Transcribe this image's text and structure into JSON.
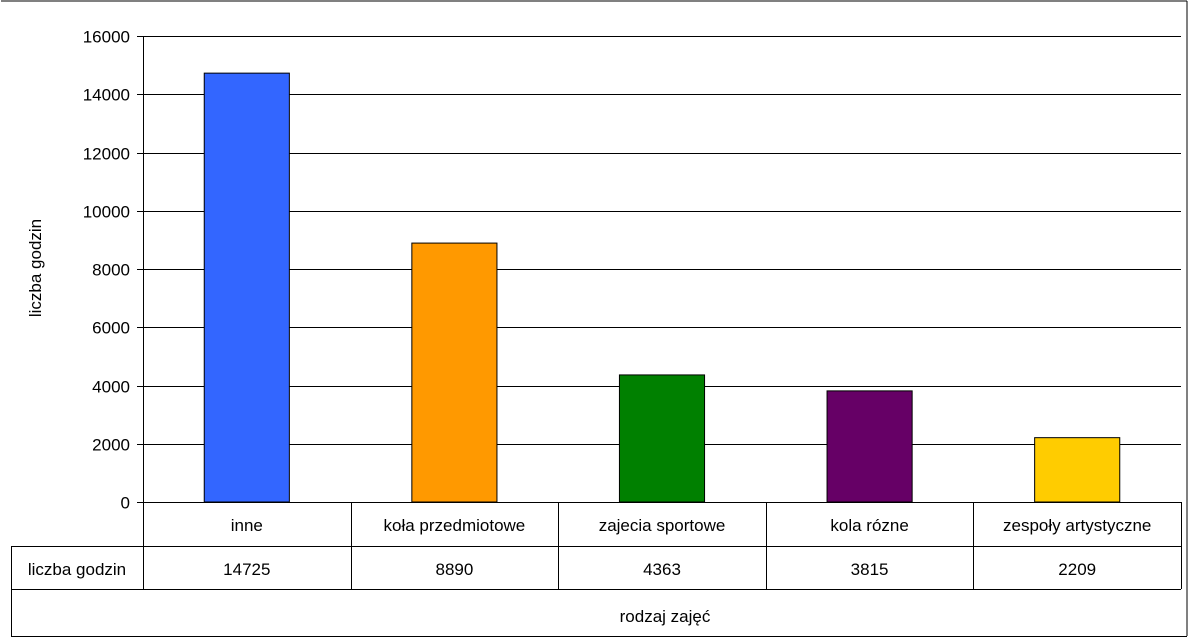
{
  "chart_data": {
    "type": "bar",
    "title": "",
    "xlabel": "rodzaj zajęć",
    "ylabel": "liczba godzin",
    "ylim": [
      0,
      16000
    ],
    "yticks": [
      0,
      2000,
      4000,
      6000,
      8000,
      10000,
      12000,
      14000,
      16000
    ],
    "grid": true,
    "legend": "none",
    "categories": [
      "inne",
      "koła przedmiotowe",
      "zajecia sportowe",
      "kola rózne",
      "zespoły artystyczne"
    ],
    "series": [
      {
        "name": "liczba godzin",
        "values": [
          14725,
          8890,
          4363,
          3815,
          2209
        ],
        "colors": [
          "#3366ff",
          "#ff9900",
          "#008000",
          "#660066",
          "#ffcc00"
        ]
      }
    ],
    "data_table": {
      "row_header": "liczba godzin",
      "values": [
        "14725",
        "8890",
        "4363",
        "3815",
        "2209"
      ]
    }
  }
}
